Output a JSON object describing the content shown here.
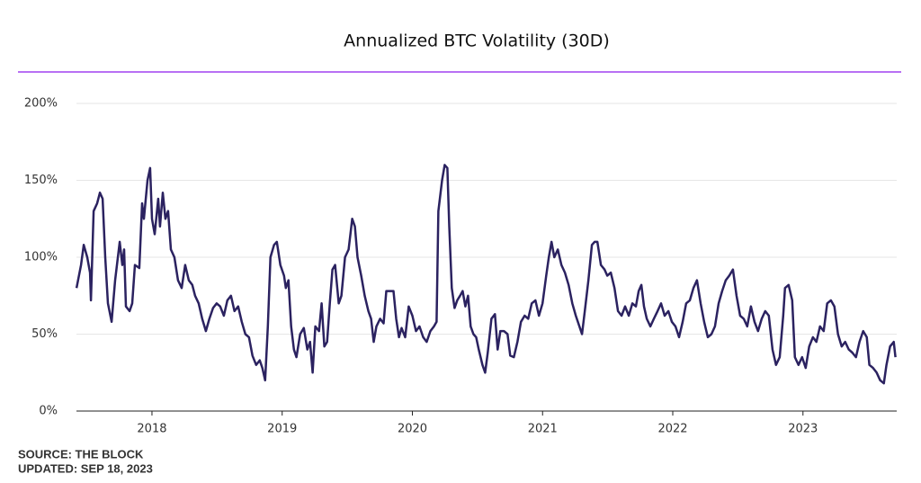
{
  "chart_data": {
    "type": "line",
    "title": "Annualized BTC Volatility (30D)",
    "source": "SOURCE: THE BLOCK",
    "updated": "UPDATED: SEP 18, 2023",
    "xlim": [
      2017.42,
      2023.72
    ],
    "xticks": [
      2018,
      2019,
      2020,
      2021,
      2022,
      2023
    ],
    "ylim": [
      0,
      200
    ],
    "yticks": [
      {
        "value": 0,
        "label": "0%"
      },
      {
        "value": 50,
        "label": "50%"
      },
      {
        "value": 100,
        "label": "100%"
      },
      {
        "value": 150,
        "label": "150%"
      },
      {
        "value": 200,
        "label": "200%"
      }
    ],
    "grid": true,
    "accent_color": "#a040f0",
    "series": [
      {
        "color": "#2b2260",
        "x": [
          2017.421,
          2017.455,
          2017.476,
          2017.503,
          2017.524,
          2017.531,
          2017.552,
          2017.579,
          2017.6,
          2017.621,
          2017.641,
          2017.662,
          2017.69,
          2017.717,
          2017.752,
          2017.772,
          2017.786,
          2017.8,
          2017.828,
          2017.848,
          2017.869,
          2017.903,
          2017.924,
          2017.938,
          2017.966,
          2017.986,
          2018.0,
          2018.021,
          2018.048,
          2018.062,
          2018.083,
          2018.103,
          2018.124,
          2018.145,
          2018.172,
          2018.2,
          2018.228,
          2018.255,
          2018.283,
          2018.31,
          2018.331,
          2018.359,
          2018.386,
          2018.414,
          2018.441,
          2018.469,
          2018.497,
          2018.524,
          2018.552,
          2018.579,
          2018.607,
          2018.634,
          2018.662,
          2018.69,
          2018.717,
          2018.745,
          2018.772,
          2018.8,
          2018.828,
          2018.848,
          2018.869,
          2018.89,
          2018.91,
          2018.938,
          2018.959,
          2018.986,
          2019.014,
          2019.028,
          2019.048,
          2019.069,
          2019.09,
          2019.11,
          2019.138,
          2019.166,
          2019.193,
          2019.214,
          2019.234,
          2019.255,
          2019.283,
          2019.303,
          2019.324,
          2019.345,
          2019.366,
          2019.386,
          2019.407,
          2019.434,
          2019.455,
          2019.483,
          2019.51,
          2019.538,
          2019.559,
          2019.579,
          2019.607,
          2019.634,
          2019.662,
          2019.683,
          2019.703,
          2019.724,
          2019.752,
          2019.779,
          2019.8,
          2019.828,
          2019.855,
          2019.876,
          2019.897,
          2019.917,
          2019.945,
          2019.972,
          2020.0,
          2020.028,
          2020.055,
          2020.083,
          2020.11,
          2020.138,
          2020.166,
          2020.186,
          2020.2,
          2020.228,
          2020.248,
          2020.269,
          2020.283,
          2020.303,
          2020.324,
          2020.345,
          2020.366,
          2020.386,
          2020.407,
          2020.428,
          2020.448,
          2020.469,
          2020.49,
          2020.51,
          2020.538,
          2020.559,
          2020.579,
          2020.607,
          2020.634,
          2020.655,
          2020.676,
          2020.703,
          2020.731,
          2020.752,
          2020.779,
          2020.807,
          2020.834,
          2020.862,
          2020.89,
          2020.917,
          2020.945,
          2020.972,
          2021.0,
          2021.028,
          2021.048,
          2021.069,
          2021.09,
          2021.117,
          2021.145,
          2021.172,
          2021.2,
          2021.228,
          2021.255,
          2021.283,
          2021.303,
          2021.324,
          2021.352,
          2021.379,
          2021.4,
          2021.421,
          2021.448,
          2021.476,
          2021.497,
          2021.524,
          2021.552,
          2021.579,
          2021.607,
          2021.634,
          2021.662,
          2021.69,
          2021.717,
          2021.738,
          2021.759,
          2021.779,
          2021.8,
          2021.828,
          2021.855,
          2021.883,
          2021.91,
          2021.938,
          2021.966,
          2021.993,
          2022.021,
          2022.048,
          2022.076,
          2022.103,
          2022.131,
          2022.159,
          2022.186,
          2022.214,
          2022.241,
          2022.269,
          2022.297,
          2022.324,
          2022.352,
          2022.379,
          2022.407,
          2022.434,
          2022.462,
          2022.49,
          2022.517,
          2022.545,
          2022.572,
          2022.6,
          2022.628,
          2022.655,
          2022.683,
          2022.71,
          2022.738,
          2022.766,
          2022.793,
          2022.821,
          2022.848,
          2022.862,
          2022.89,
          2022.917,
          2022.938,
          2022.966,
          2022.993,
          2023.021,
          2023.048,
          2023.076,
          2023.103,
          2023.131,
          2023.159,
          2023.186,
          2023.214,
          2023.241,
          2023.269,
          2023.297,
          2023.324,
          2023.352,
          2023.379,
          2023.407,
          2023.434,
          2023.462,
          2023.49,
          2023.51,
          2023.538,
          2023.566,
          2023.593,
          2023.621,
          2023.641,
          2023.669,
          2023.697,
          2023.71
        ],
        "values": [
          80,
          95,
          108,
          100,
          90,
          72,
          130,
          135,
          142,
          138,
          100,
          70,
          58,
          85,
          110,
          95,
          105,
          68,
          65,
          70,
          95,
          93,
          135,
          125,
          150,
          158,
          125,
          115,
          138,
          120,
          142,
          125,
          130,
          105,
          100,
          85,
          80,
          95,
          85,
          82,
          75,
          70,
          60,
          52,
          60,
          67,
          70,
          68,
          62,
          72,
          75,
          65,
          68,
          58,
          50,
          48,
          36,
          30,
          33,
          28,
          20,
          55,
          100,
          108,
          110,
          95,
          88,
          80,
          85,
          55,
          40,
          35,
          50,
          54,
          40,
          45,
          25,
          55,
          52,
          70,
          42,
          45,
          70,
          92,
          95,
          70,
          75,
          100,
          105,
          125,
          120,
          100,
          88,
          75,
          65,
          60,
          45,
          55,
          60,
          57,
          78,
          78,
          78,
          60,
          48,
          54,
          48,
          68,
          62,
          52,
          55,
          48,
          45,
          52,
          55,
          58,
          130,
          150,
          160,
          158,
          120,
          80,
          67,
          72,
          75,
          78,
          68,
          75,
          55,
          50,
          48,
          40,
          30,
          25,
          38,
          60,
          63,
          40,
          52,
          52,
          50,
          36,
          35,
          45,
          58,
          62,
          60,
          70,
          72,
          62,
          70,
          88,
          100,
          110,
          100,
          105,
          95,
          90,
          82,
          70,
          62,
          55,
          50,
          65,
          85,
          108,
          110,
          110,
          95,
          92,
          88,
          90,
          80,
          65,
          62,
          68,
          62,
          70,
          68,
          78,
          82,
          68,
          60,
          55,
          60,
          65,
          70,
          62,
          65,
          58,
          55,
          48,
          58,
          70,
          72,
          80,
          85,
          70,
          58,
          48,
          50,
          55,
          70,
          78,
          85,
          88,
          92,
          75,
          62,
          60,
          55,
          68,
          58,
          52,
          60,
          65,
          62,
          40,
          30,
          35,
          62,
          80,
          82,
          72,
          35,
          30,
          35,
          28,
          42,
          48,
          45,
          55,
          52,
          70,
          72,
          68,
          50,
          42,
          45,
          40,
          38,
          35,
          45,
          52,
          48,
          30,
          28,
          25,
          20,
          18,
          30,
          42,
          45,
          35
        ]
      }
    ]
  }
}
